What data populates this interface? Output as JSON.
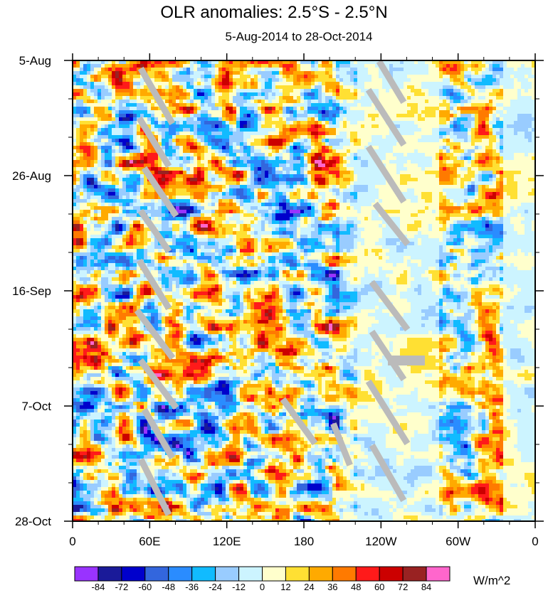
{
  "chart_data": {
    "type": "heatmap",
    "title": "OLR anomalies: 2.5°S - 2.5°N",
    "subtitle": "5-Aug-2014 to 28-Oct-2014",
    "x_ticks": [
      "0",
      "60E",
      "120E",
      "180",
      "120W",
      "60W",
      "0"
    ],
    "y_ticks": [
      "5-Aug",
      "26-Aug",
      "16-Sep",
      "7-Oct",
      "28-Oct"
    ],
    "xlim": [
      0,
      360
    ],
    "colorbar": {
      "unit": "W/m^2",
      "levels": [
        "-84",
        "-72",
        "-60",
        "-48",
        "-36",
        "-24",
        "-12",
        "0",
        "12",
        "24",
        "36",
        "48",
        "60",
        "72",
        "84"
      ],
      "colors": [
        "#9933ff",
        "#1a1a99",
        "#0000cc",
        "#3366dd",
        "#2a8cff",
        "#11bbff",
        "#99ccff",
        "#ccf4ff",
        "#ffffcc",
        "#ffe033",
        "#ffaa00",
        "#ff7a00",
        "#ff1a1a",
        "#cc0000",
        "#992222",
        "#ff66cc"
      ]
    },
    "missing_color": "#bbbbbb"
  }
}
